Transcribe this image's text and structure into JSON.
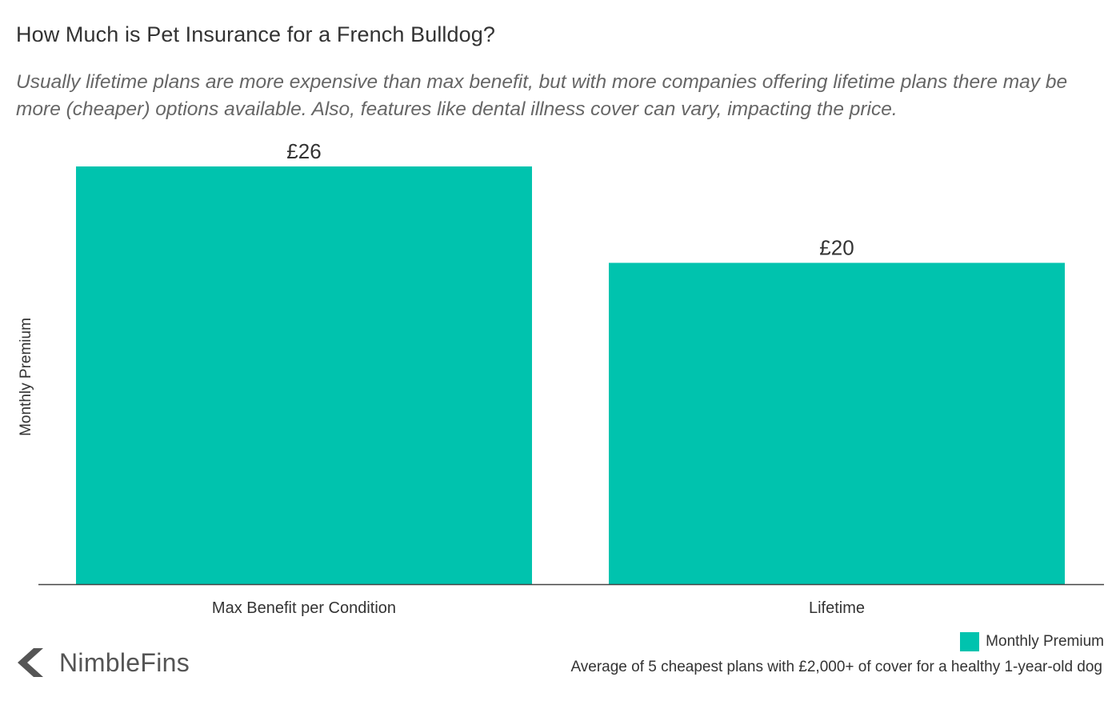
{
  "chart_data": {
    "type": "bar",
    "title": "How Much is Pet Insurance for a French Bulldog?",
    "subtitle": "Usually lifetime plans are more expensive than max benefit, but with more companies offering lifetime plans there may be more (cheaper) options available. Also, features like dental illness cover can vary, impacting the price.",
    "categories": [
      "Max Benefit per Condition",
      "Lifetime"
    ],
    "series": [
      {
        "name": "Monthly Premium",
        "values": [
          26,
          20
        ],
        "labels": [
          "£26",
          "£20"
        ],
        "color": "#00c3ae"
      }
    ],
    "xlabel": "",
    "ylabel": "Monthly Premium",
    "ylim": [
      0,
      26
    ],
    "grid": false,
    "legend_position": "bottom-right",
    "footnote": "Average of 5 cheapest plans with £2,000+ of cover for a healthy 1-year-old dog"
  },
  "brand": {
    "name": "NimbleFins",
    "icon": "chevron-left-icon",
    "color": "#555555"
  }
}
